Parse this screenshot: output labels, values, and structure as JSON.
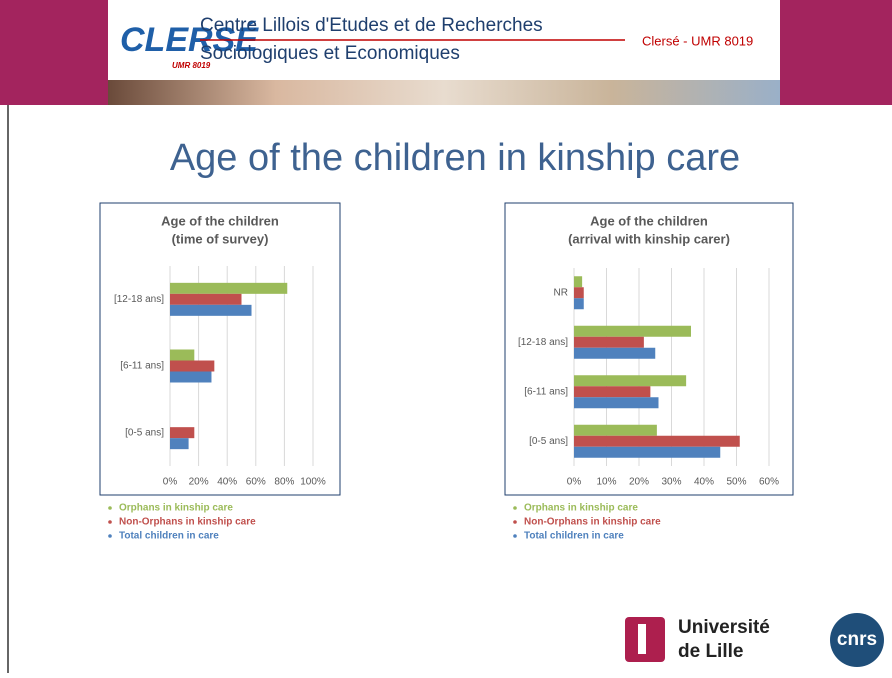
{
  "header": {
    "logo": "CLERSÉ",
    "logo_sub": "UMR 8019",
    "line1": "Centre Lillois d'Etudes et de Recherches",
    "line2": "Sociologiques et Economiques",
    "badge": "Clersé - UMR 8019"
  },
  "title": "Age of the children in kinship care",
  "chart_data": [
    {
      "type": "bar",
      "orientation": "horizontal",
      "title": [
        "Age of the children",
        "(time of survey)"
      ],
      "categories": [
        "[0-5 ans]",
        "[6-11 ans]",
        "[12-18 ans]"
      ],
      "series": [
        {
          "name": "Orphans in kinship care",
          "color": "#9bbb59",
          "values": [
            0,
            17,
            82
          ]
        },
        {
          "name": "Non-Orphans in kinship care",
          "color": "#c0504d",
          "values": [
            17,
            31,
            50
          ]
        },
        {
          "name": "Total children in care",
          "color": "#4f81bd",
          "values": [
            13,
            29,
            57
          ]
        }
      ],
      "xlim": [
        0,
        100
      ],
      "xticks": [
        {
          "value": 0,
          "label": "0%"
        },
        {
          "value": 20,
          "label": "20%"
        },
        {
          "value": 40,
          "label": "40%"
        },
        {
          "value": 60,
          "label": "60%"
        },
        {
          "value": 80,
          "label": "80%"
        },
        {
          "value": 100,
          "label": "100%"
        }
      ],
      "grid": true
    },
    {
      "type": "bar",
      "orientation": "horizontal",
      "title": [
        "Age of the children",
        "(arrival with kinship carer)"
      ],
      "categories": [
        "[0-5 ans]",
        "[6-11 ans]",
        "[12-18 ans]",
        "NR"
      ],
      "series": [
        {
          "name": "Orphans in kinship care",
          "color": "#9bbb59",
          "values": [
            25.5,
            34.5,
            36,
            2.5
          ]
        },
        {
          "name": "Non-Orphans in kinship care",
          "color": "#c0504d",
          "values": [
            51,
            23.5,
            21.5,
            3
          ]
        },
        {
          "name": "Total children in care",
          "color": "#4f81bd",
          "values": [
            45,
            26,
            25,
            3
          ]
        }
      ],
      "xlim": [
        0,
        60
      ],
      "xticks": [
        {
          "value": 0,
          "label": "0%"
        },
        {
          "value": 10,
          "label": "10%"
        },
        {
          "value": 20,
          "label": "20%"
        },
        {
          "value": 30,
          "label": "30%"
        },
        {
          "value": 40,
          "label": "40%"
        },
        {
          "value": 50,
          "label": "50%"
        },
        {
          "value": 60,
          "label": "60%"
        }
      ],
      "grid": true
    }
  ],
  "footer": {
    "university": [
      "Université",
      "de Lille"
    ],
    "cnrs": "cnrs"
  }
}
